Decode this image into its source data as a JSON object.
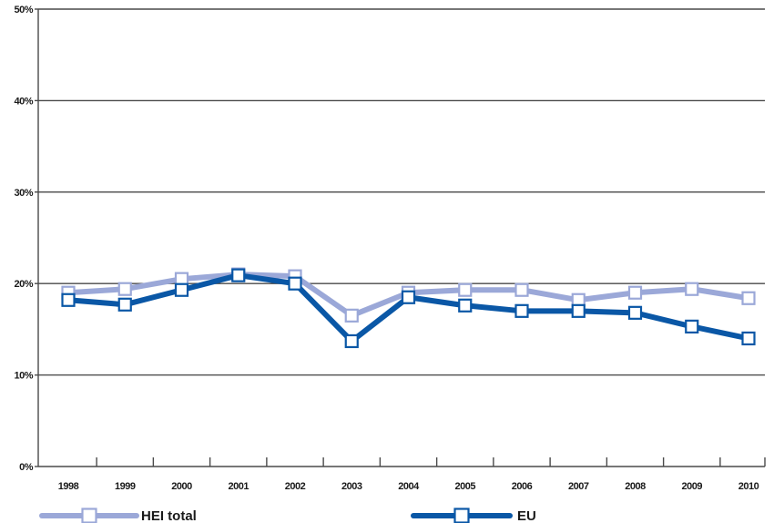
{
  "chart_data": {
    "type": "line",
    "categories": [
      "1998",
      "1999",
      "2000",
      "2001",
      "2002",
      "2003",
      "2004",
      "2005",
      "2006",
      "2007",
      "2008",
      "2009",
      "2010"
    ],
    "y_ticks": [
      "0%",
      "10%",
      "20%",
      "30%",
      "40%",
      "50%"
    ],
    "ylim": [
      0,
      50
    ],
    "grid": true,
    "legend_position": "bottom",
    "series": [
      {
        "name": "HEI total",
        "color": "#9ba8d8",
        "marker": "open-square",
        "values": [
          19.0,
          19.4,
          20.5,
          21.0,
          20.8,
          16.5,
          19.0,
          19.3,
          19.3,
          18.2,
          19.0,
          19.4,
          18.4
        ]
      },
      {
        "name": "EU",
        "color": "#0a57a6",
        "marker": "open-square",
        "values": [
          18.2,
          17.7,
          19.3,
          20.9,
          20.0,
          13.7,
          18.5,
          17.6,
          17.0,
          17.0,
          16.8,
          15.3,
          14.0
        ]
      }
    ]
  }
}
